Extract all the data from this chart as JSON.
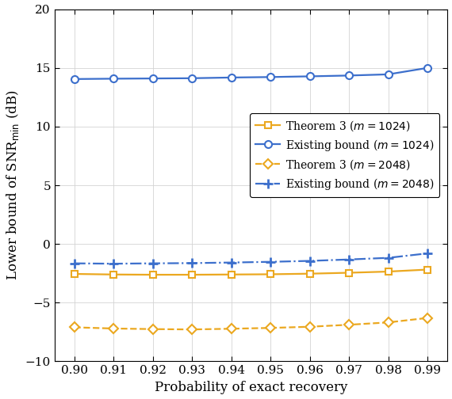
{
  "x": [
    0.9,
    0.91,
    0.92,
    0.93,
    0.94,
    0.95,
    0.96,
    0.97,
    0.98,
    0.99
  ],
  "theorem3_m1024": [
    -2.55,
    -2.6,
    -2.62,
    -2.62,
    -2.6,
    -2.58,
    -2.53,
    -2.45,
    -2.35,
    -2.18
  ],
  "existing_m1024": [
    14.05,
    14.08,
    14.1,
    14.12,
    14.18,
    14.22,
    14.28,
    14.35,
    14.45,
    15.0
  ],
  "theorem3_m2048": [
    -7.1,
    -7.2,
    -7.25,
    -7.28,
    -7.22,
    -7.15,
    -7.05,
    -6.88,
    -6.68,
    -6.3
  ],
  "existing_m2048": [
    -1.65,
    -1.68,
    -1.65,
    -1.63,
    -1.58,
    -1.52,
    -1.44,
    -1.32,
    -1.18,
    -0.8
  ],
  "color_orange": "#EBA820",
  "color_blue": "#3C6FCC",
  "xlabel": "Probability of exact recovery",
  "ylabel": "Lower bound of SNR$_\\mathrm{min}$ (dB)",
  "xlim": [
    0.895,
    0.995
  ],
  "ylim": [
    -10,
    20
  ],
  "yticks": [
    -10,
    -5,
    0,
    5,
    10,
    15,
    20
  ],
  "xticks": [
    0.9,
    0.91,
    0.92,
    0.93,
    0.94,
    0.95,
    0.96,
    0.97,
    0.98,
    0.99
  ],
  "legend_labels": [
    "Theorem 3 ($m = 1024$)",
    "Existing bound ($m = 1024$)",
    "Theorem 3 ($m = 2048$)",
    "Existing bound ($m = 2048$)"
  ],
  "grid_color": "#D3D3D3",
  "background_color": "#FFFFFF",
  "figwidth": 5.7,
  "figheight": 5.04,
  "dpi": 100
}
